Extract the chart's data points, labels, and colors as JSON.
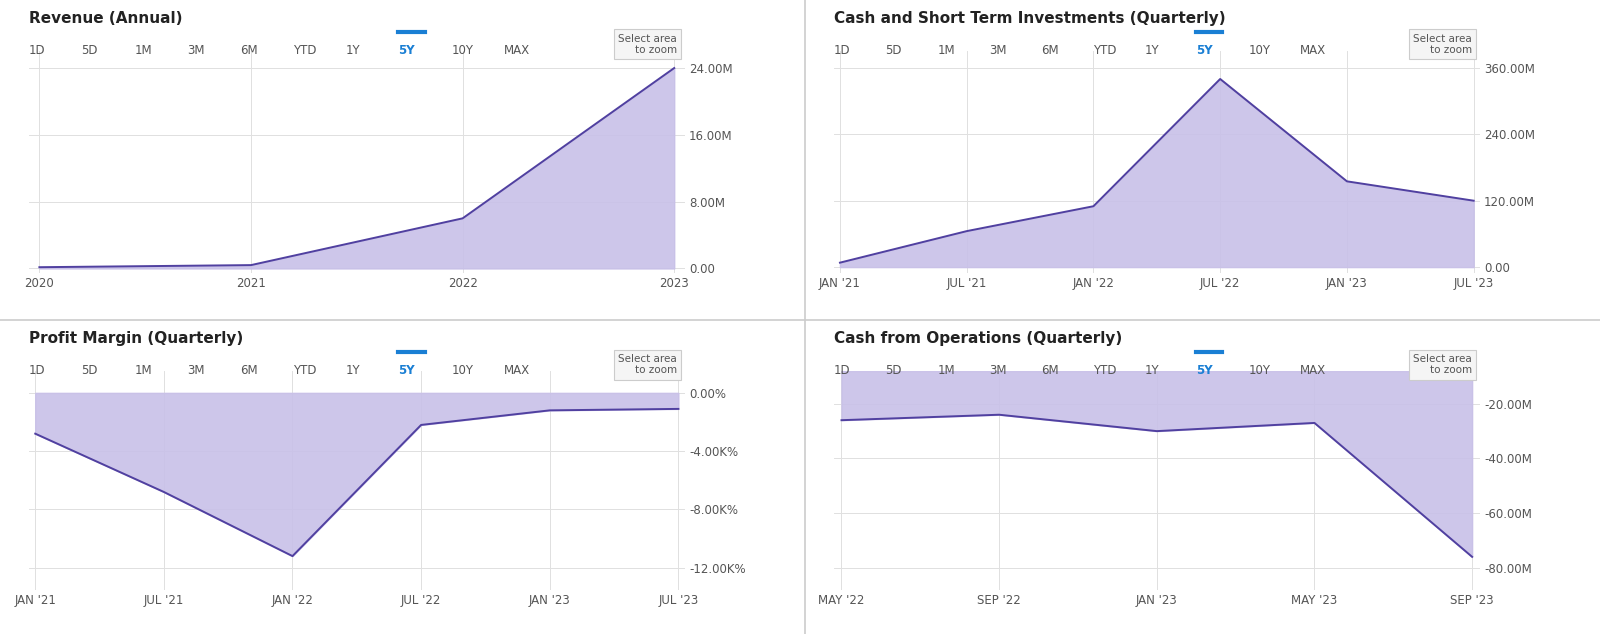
{
  "chart1": {
    "title": "Revenue (Annual)",
    "x_labels": [
      "2020",
      "2021",
      "2022",
      "2023"
    ],
    "x_values": [
      0,
      1,
      2,
      3
    ],
    "y_values": [
      0.15,
      0.4,
      6.0,
      24.0
    ],
    "y_ticks": [
      0.0,
      8.0,
      16.0,
      24.0
    ],
    "y_tick_labels": [
      "0.00",
      "8.00M",
      "16.00M",
      "24.00M"
    ],
    "ylim": [
      -0.5,
      26.0
    ],
    "fill_baseline": 0
  },
  "chart2": {
    "title": "Cash and Short Term Investments (Quarterly)",
    "x_labels": [
      "JAN '21",
      "JUL '21",
      "JAN '22",
      "JUL '22",
      "JAN '23",
      "JUL '23"
    ],
    "x_values": [
      0,
      1,
      2,
      3,
      4,
      5
    ],
    "y_values": [
      8,
      65,
      110,
      340,
      155,
      120
    ],
    "y_ticks": [
      0.0,
      120.0,
      240.0,
      360.0
    ],
    "y_tick_labels": [
      "0.00",
      "120.00M",
      "240.00M",
      "360.00M"
    ],
    "ylim": [
      -10,
      390
    ],
    "fill_baseline": 0
  },
  "chart3": {
    "title": "Profit Margin (Quarterly)",
    "x_labels": [
      "JAN '21",
      "JUL '21",
      "JAN '22",
      "JUL '22",
      "JAN '23",
      "JUL '23"
    ],
    "x_values": [
      0,
      1,
      2,
      3,
      4,
      5
    ],
    "y_values": [
      -2800,
      -6800,
      -11200,
      -2200,
      -1200,
      -1100
    ],
    "y_ticks": [
      0.0,
      -4000,
      -8000,
      -12000
    ],
    "y_tick_labels": [
      "0.00%",
      "-4.00K%",
      "-8.00K%",
      "-12.00K%"
    ],
    "ylim": [
      -13500,
      1500
    ],
    "fill_baseline": 0
  },
  "chart4": {
    "title": "Cash from Operations (Quarterly)",
    "x_labels": [
      "MAY '22",
      "SEP '22",
      "JAN '23",
      "MAY '23",
      "SEP '23"
    ],
    "x_values": [
      0,
      1,
      2,
      3,
      4
    ],
    "y_values": [
      -26,
      -24,
      -30,
      -27,
      -76
    ],
    "y_ticks": [
      -20,
      -40,
      -60,
      -80
    ],
    "y_tick_labels": [
      "-20.00M",
      "-40.00M",
      "-60.00M",
      "-80.00M"
    ],
    "ylim": [
      -88,
      -8
    ],
    "fill_baseline": -8
  },
  "time_buttons": [
    "1D",
    "5D",
    "1M",
    "3M",
    "6M",
    "YTD",
    "1Y",
    "5Y",
    "10Y",
    "MAX"
  ],
  "active_button": "5Y",
  "area_fill_color": "#c8c0e8",
  "line_color": "#5040a0",
  "grid_color": "#e0e0e0",
  "background_color": "#ffffff",
  "button_text_color": "#555555",
  "active_button_color": "#1a7fd4",
  "title_fontsize": 11,
  "tick_fontsize": 8.5,
  "button_fontsize": 8.5,
  "sep_color": "#cccccc"
}
